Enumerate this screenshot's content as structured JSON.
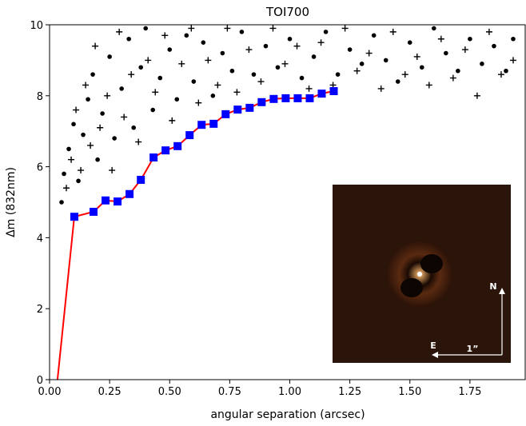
{
  "chart_data": {
    "type": "scatter",
    "title": "TOI700",
    "x_label": "angular separation (arcsec)",
    "y_label": "Δm (832nm)",
    "xlim": [
      0,
      1.98
    ],
    "ylim": [
      0,
      10
    ],
    "xticks": [
      {
        "value": 0,
        "label": "0.00"
      },
      {
        "value": 0.25,
        "label": "0.25"
      },
      {
        "value": 0.5,
        "label": "0.50"
      },
      {
        "value": 0.75,
        "label": "0.75"
      },
      {
        "value": 1,
        "label": "1.00"
      },
      {
        "value": 1.25,
        "label": "1.25"
      },
      {
        "value": 1.5,
        "label": "1.50"
      },
      {
        "value": 1.75,
        "label": "1.75"
      }
    ],
    "yticks": [
      0,
      2,
      4,
      6,
      8,
      10
    ],
    "series": [
      {
        "marker": "dot",
        "color": "#000000",
        "x": [
          0.05,
          0.06,
          0.08,
          0.1,
          0.12,
          0.14,
          0.16,
          0.18,
          0.2,
          0.22,
          0.25,
          0.27,
          0.3,
          0.33,
          0.35,
          0.38,
          0.4,
          0.43,
          0.46,
          0.5,
          0.53,
          0.57,
          0.6,
          0.64,
          0.68,
          0.72,
          0.76,
          0.8,
          0.85,
          0.9,
          0.95,
          1.0,
          1.05,
          1.1,
          1.15,
          1.2,
          1.25,
          1.3,
          1.35,
          1.4,
          1.45,
          1.5,
          1.55,
          1.6,
          1.65,
          1.7,
          1.75,
          1.8,
          1.85,
          1.9,
          1.93
        ],
        "values": [
          5.0,
          5.8,
          6.5,
          7.2,
          5.6,
          6.9,
          7.9,
          8.6,
          6.2,
          7.5,
          9.1,
          6.8,
          8.2,
          9.6,
          7.1,
          8.8,
          9.9,
          7.6,
          8.5,
          9.3,
          7.9,
          9.7,
          8.4,
          9.5,
          8.0,
          9.2,
          8.7,
          9.8,
          8.6,
          9.4,
          8.8,
          9.6,
          8.5,
          9.1,
          9.8,
          8.6,
          9.3,
          8.9,
          9.7,
          9.0,
          8.4,
          9.5,
          8.8,
          9.9,
          9.2,
          8.7,
          9.6,
          8.9,
          9.4,
          8.7,
          9.6
        ]
      },
      {
        "marker": "plus",
        "color": "#000000",
        "x": [
          0.07,
          0.09,
          0.11,
          0.13,
          0.15,
          0.17,
          0.19,
          0.21,
          0.24,
          0.26,
          0.29,
          0.31,
          0.34,
          0.37,
          0.41,
          0.44,
          0.48,
          0.51,
          0.55,
          0.59,
          0.62,
          0.66,
          0.7,
          0.74,
          0.78,
          0.83,
          0.88,
          0.93,
          0.98,
          1.03,
          1.08,
          1.13,
          1.18,
          1.23,
          1.28,
          1.33,
          1.38,
          1.43,
          1.48,
          1.53,
          1.58,
          1.63,
          1.68,
          1.73,
          1.78,
          1.83,
          1.88,
          1.93
        ],
        "values": [
          5.4,
          6.2,
          7.6,
          5.9,
          8.3,
          6.6,
          9.4,
          7.1,
          8.0,
          5.9,
          9.8,
          7.4,
          8.6,
          6.7,
          9.0,
          8.1,
          9.7,
          7.3,
          8.9,
          9.9,
          7.8,
          9.0,
          8.3,
          9.9,
          8.1,
          9.3,
          8.4,
          9.9,
          8.9,
          9.4,
          8.2,
          9.5,
          8.3,
          9.9,
          8.7,
          9.2,
          8.2,
          9.8,
          8.6,
          9.1,
          8.3,
          9.6,
          8.5,
          9.3,
          8.0,
          9.8,
          8.6,
          9.0
        ]
      },
      {
        "marker": "line",
        "color": "#ff0000",
        "x": [
          0.033,
          0.103,
          0.183,
          0.233,
          0.283,
          0.333,
          0.38,
          0.433,
          0.483,
          0.533,
          0.583,
          0.633,
          0.683,
          0.733,
          0.783,
          0.833,
          0.883,
          0.933,
          0.983,
          1.033,
          1.083,
          1.133,
          1.183
        ],
        "values": [
          0,
          4.59,
          4.73,
          5.05,
          5.02,
          5.23,
          5.63,
          6.26,
          6.46,
          6.58,
          6.89,
          7.18,
          7.21,
          7.48,
          7.61,
          7.66,
          7.82,
          7.91,
          7.93,
          7.93,
          7.93,
          8.06,
          8.13
        ]
      },
      {
        "marker": "square",
        "color": "#0000ff",
        "x": [
          0.103,
          0.183,
          0.233,
          0.283,
          0.333,
          0.38,
          0.433,
          0.483,
          0.533,
          0.583,
          0.633,
          0.683,
          0.733,
          0.783,
          0.833,
          0.883,
          0.933,
          0.983,
          1.033,
          1.083,
          1.133,
          1.183
        ],
        "values": [
          4.59,
          4.73,
          5.05,
          5.02,
          5.23,
          5.63,
          6.26,
          6.46,
          6.58,
          6.89,
          7.18,
          7.21,
          7.48,
          7.61,
          7.66,
          7.82,
          7.91,
          7.93,
          7.93,
          7.93,
          8.06,
          8.13
        ]
      }
    ],
    "inset_labels": {
      "north": "N",
      "east": "E",
      "scale": "1”"
    }
  }
}
